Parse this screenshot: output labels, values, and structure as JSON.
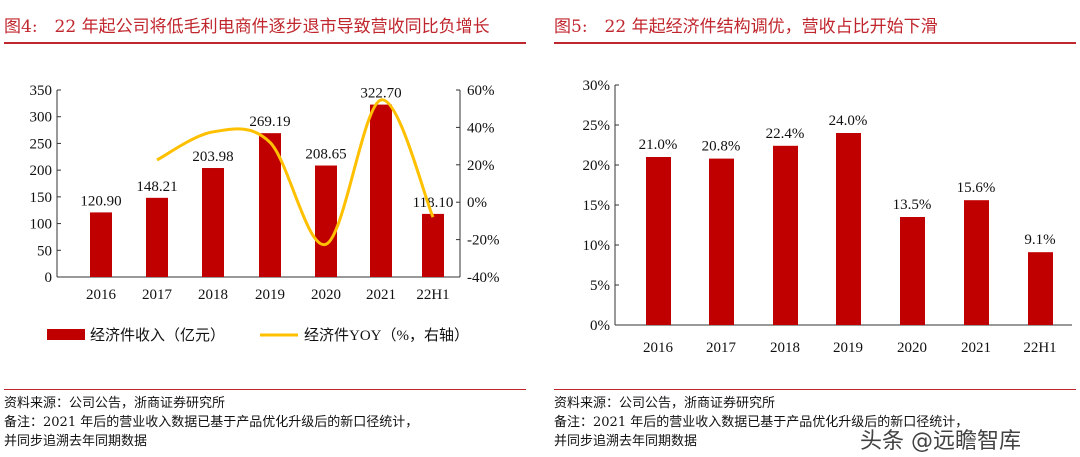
{
  "left": {
    "title": "图4:　22 年起公司将低毛利电商件逐步退市导致营收同比负增长",
    "source": "资料来源：公司公告，浙商证券研究所",
    "note1": "备注：2021 年后的营业收入数据已基于产品优化升级后的新口径统计，",
    "note2": "并同步追溯去年同期数据"
  },
  "right": {
    "title": "图5:　22 年起经济件结构调优，营收占比开始下滑",
    "source": "资料来源：公司公告，浙商证券研究所",
    "note1": "备注：2021 年后的营业收入数据已基于产品优化升级后的新口径统计，",
    "note2": "并同步追溯去年同期数据"
  },
  "watermark": "头条 @远瞻智库",
  "chart_data": [
    {
      "type": "bar+line",
      "categories": [
        "2016",
        "2017",
        "2018",
        "2019",
        "2020",
        "2021",
        "22H1"
      ],
      "series": [
        {
          "name": "经济件收入（亿元）",
          "type": "bar",
          "values": [
            120.9,
            148.21,
            203.98,
            269.19,
            208.65,
            322.7,
            118.1
          ],
          "labels": [
            "120.90",
            "148.21",
            "203.98",
            "269.19",
            "208.65",
            "322.70",
            "118.10"
          ],
          "color": "#c00000"
        },
        {
          "name": "经济件YOY（%，右轴）",
          "type": "line",
          "axis": "right",
          "values": [
            null,
            22.6,
            37.6,
            32.0,
            -22.5,
            54.7,
            -8
          ],
          "color": "#ffc000"
        }
      ],
      "ylim": [
        0,
        350
      ],
      "yticks": [
        "0",
        "50",
        "100",
        "150",
        "200",
        "250",
        "300",
        "350"
      ],
      "y2lim": [
        -40,
        60
      ],
      "y2ticks": [
        "-40%",
        "-20%",
        "0%",
        "20%",
        "40%",
        "60%"
      ],
      "legend": "bottom"
    },
    {
      "type": "bar",
      "categories": [
        "2016",
        "2017",
        "2018",
        "2019",
        "2020",
        "2021",
        "22H1"
      ],
      "values": [
        21.0,
        20.8,
        22.4,
        24.0,
        13.5,
        15.6,
        9.1
      ],
      "labels": [
        "21.0%",
        "20.8%",
        "22.4%",
        "24.0%",
        "13.5%",
        "15.6%",
        "9.1%"
      ],
      "ylim": [
        0,
        30
      ],
      "yticks": [
        "0%",
        "5%",
        "10%",
        "15%",
        "20%",
        "25%",
        "30%"
      ],
      "color": "#c00000"
    }
  ]
}
